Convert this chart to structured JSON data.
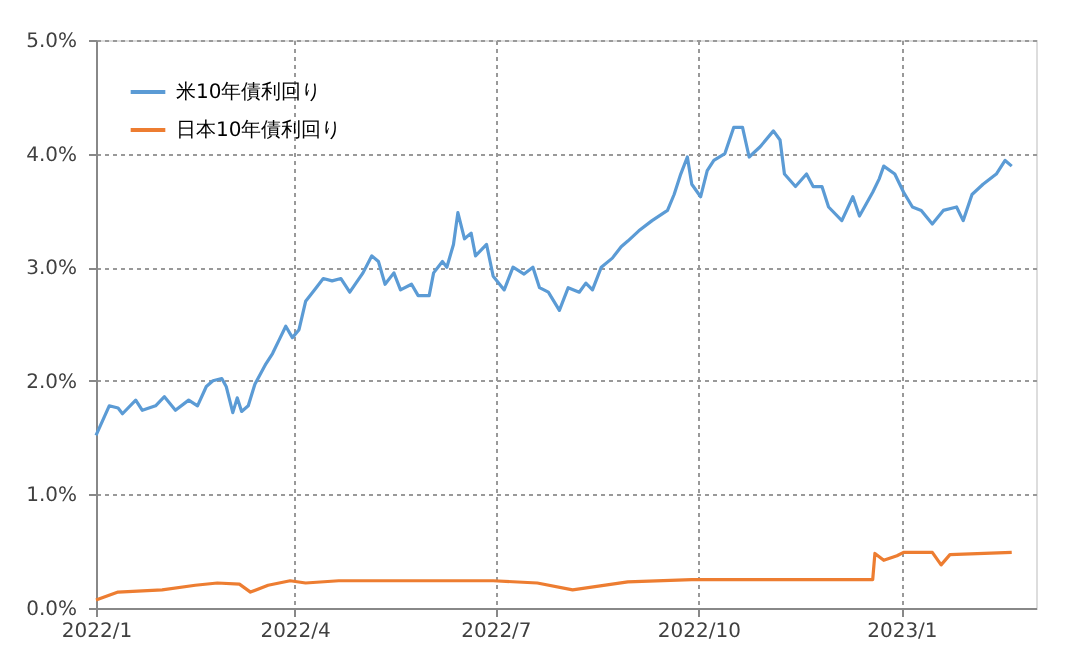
{
  "chart_data": {
    "type": "line",
    "xlim": [
      "2022-01-01",
      "2023-03-03"
    ],
    "xticks": [
      {
        "value": "2022-01-01",
        "label": "2022/1"
      },
      {
        "value": "2022-04-01",
        "label": "2022/4"
      },
      {
        "value": "2022-07-01",
        "label": "2022/7"
      },
      {
        "value": "2022-10-01",
        "label": "2022/10"
      },
      {
        "value": "2023-01-01",
        "label": "2023/1"
      }
    ],
    "ylim": [
      0,
      5
    ],
    "yticks": [
      {
        "value": 0,
        "label": "0.0%"
      },
      {
        "value": 1,
        "label": "1.0%"
      },
      {
        "value": 2,
        "label": "2.0%"
      },
      {
        "value": 3,
        "label": "3.0%"
      },
      {
        "value": 4,
        "label": "4.0%"
      },
      {
        "value": 5,
        "label": "5.0%"
      }
    ],
    "grid": true,
    "legend": "top left",
    "marker": "none",
    "line_style": "solid",
    "series": [
      {
        "name": "米10年債利回り",
        "color": "#5b9bd5",
        "x": [
          "2022-01-01",
          "2022-01-07",
          "2022-01-11",
          "2022-01-13",
          "2022-01-19",
          "2022-01-22",
          "2022-01-28",
          "2022-02-01",
          "2022-02-06",
          "2022-02-12",
          "2022-02-16",
          "2022-02-20",
          "2022-02-23",
          "2022-02-27",
          "2022-03-01",
          "2022-03-04",
          "2022-03-06",
          "2022-03-08",
          "2022-03-11",
          "2022-03-14",
          "2022-03-19",
          "2022-03-22",
          "2022-03-25",
          "2022-03-28",
          "2022-03-31",
          "2022-04-03",
          "2022-04-06",
          "2022-04-10",
          "2022-04-14",
          "2022-04-18",
          "2022-04-22",
          "2022-04-26",
          "2022-05-02",
          "2022-05-06",
          "2022-05-09",
          "2022-05-12",
          "2022-05-16",
          "2022-05-19",
          "2022-05-24",
          "2022-05-27",
          "2022-06-01",
          "2022-06-03",
          "2022-06-07",
          "2022-06-09",
          "2022-06-12",
          "2022-06-14",
          "2022-06-17",
          "2022-06-20",
          "2022-06-22",
          "2022-06-27",
          "2022-06-30",
          "2022-07-05",
          "2022-07-09",
          "2022-07-14",
          "2022-07-18",
          "2022-07-21",
          "2022-07-25",
          "2022-07-30",
          "2022-08-03",
          "2022-08-08",
          "2022-08-11",
          "2022-08-14",
          "2022-08-18",
          "2022-08-23",
          "2022-08-27",
          "2022-08-30",
          "2022-09-04",
          "2022-09-10",
          "2022-09-17",
          "2022-09-20",
          "2022-09-23",
          "2022-09-26",
          "2022-09-28",
          "2022-10-02",
          "2022-10-05",
          "2022-10-08",
          "2022-10-13",
          "2022-10-17",
          "2022-10-21",
          "2022-10-24",
          "2022-10-29",
          "2022-11-04",
          "2022-11-07",
          "2022-11-09",
          "2022-11-14",
          "2022-11-19",
          "2022-11-22",
          "2022-11-26",
          "2022-11-29",
          "2022-12-05",
          "2022-12-10",
          "2022-12-13",
          "2022-12-19",
          "2022-12-22",
          "2022-12-24",
          "2022-12-29",
          "2023-01-02",
          "2023-01-06",
          "2023-01-10",
          "2023-01-15",
          "2023-01-20",
          "2023-01-26",
          "2023-01-29",
          "2023-02-02",
          "2023-02-07",
          "2023-02-13",
          "2023-02-17",
          "2023-02-20"
        ],
        "values": [
          1.52,
          1.78,
          1.76,
          1.71,
          1.83,
          1.74,
          1.78,
          1.86,
          1.74,
          1.83,
          1.78,
          1.95,
          2.0,
          2.02,
          1.95,
          1.72,
          1.85,
          1.73,
          1.78,
          1.97,
          2.15,
          2.24,
          2.36,
          2.48,
          2.38,
          2.45,
          2.7,
          2.8,
          2.9,
          2.88,
          2.9,
          2.78,
          2.95,
          3.1,
          3.05,
          2.85,
          2.95,
          2.8,
          2.85,
          2.75,
          2.75,
          2.95,
          3.05,
          3.0,
          3.2,
          3.48,
          3.25,
          3.3,
          3.1,
          3.2,
          2.92,
          2.8,
          3.0,
          2.94,
          3.0,
          2.82,
          2.78,
          2.62,
          2.82,
          2.78,
          2.86,
          2.8,
          3.0,
          3.08,
          3.18,
          3.23,
          3.32,
          3.41,
          3.5,
          3.64,
          3.82,
          3.97,
          3.73,
          3.62,
          3.85,
          3.94,
          4.0,
          4.23,
          4.23,
          3.97,
          4.06,
          4.2,
          4.12,
          3.82,
          3.71,
          3.82,
          3.71,
          3.71,
          3.53,
          3.41,
          3.62,
          3.45,
          3.66,
          3.78,
          3.89,
          3.82,
          3.66,
          3.53,
          3.5,
          3.38,
          3.5,
          3.53,
          3.41,
          3.64,
          3.73,
          3.82,
          3.94,
          3.89
        ]
      },
      {
        "name": "日本10年債利回り",
        "color": "#ed7d31",
        "x": [
          "2022-01-01",
          "2022-01-11",
          "2022-01-31",
          "2022-02-15",
          "2022-02-25",
          "2022-03-07",
          "2022-03-12",
          "2022-03-20",
          "2022-03-30",
          "2022-04-06",
          "2022-04-21",
          "2022-05-31",
          "2022-06-30",
          "2022-07-20",
          "2022-08-05",
          "2022-08-30",
          "2022-09-28",
          "2022-10-28",
          "2022-12-19",
          "2022-12-20",
          "2022-12-24",
          "2022-12-30",
          "2023-01-02",
          "2023-01-15",
          "2023-01-19",
          "2023-01-23",
          "2023-02-20"
        ],
        "values": [
          0.07,
          0.14,
          0.16,
          0.2,
          0.22,
          0.21,
          0.14,
          0.2,
          0.24,
          0.22,
          0.24,
          0.24,
          0.24,
          0.22,
          0.16,
          0.23,
          0.25,
          0.25,
          0.25,
          0.48,
          0.42,
          0.46,
          0.49,
          0.49,
          0.38,
          0.47,
          0.49
        ]
      }
    ]
  }
}
